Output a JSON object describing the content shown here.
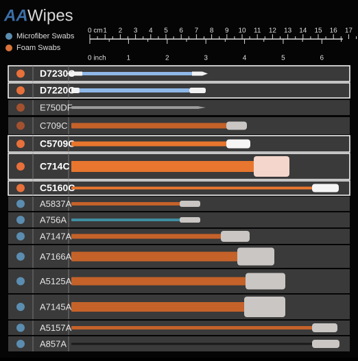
{
  "header": {
    "logo_mark": "AA",
    "logo_text": "Wipes"
  },
  "legend": [
    {
      "label": "Microfiber Swabs",
      "color": "#5b8db0"
    },
    {
      "label": "Foam Swabs",
      "color": "#d9733a"
    }
  ],
  "ruler": {
    "cm_label": "0 cm",
    "cm_ticks": [
      "1",
      "2",
      "3",
      "4",
      "5",
      "6",
      "7",
      "8",
      "9",
      "10",
      "11",
      "12",
      "13",
      "14",
      "15",
      "16",
      "17"
    ],
    "inch_label": "0 inch",
    "inch_ticks": [
      "1",
      "2",
      "3",
      "4",
      "5",
      "6"
    ]
  },
  "table": {
    "rows": [
      {
        "label": "D7230C",
        "color": "#e8703a"
      },
      {
        "label": "D7220C",
        "color": "#e8703a"
      },
      {
        "label": "E750DF",
        "color": "#a3512f"
      },
      {
        "label": "C709C",
        "color": "#a3512f"
      },
      {
        "label": "C5709C",
        "color": "#e8703a"
      },
      {
        "label": "C714C",
        "color": "#e8703a"
      },
      {
        "label": "C5160C",
        "color": "#e8703a"
      },
      {
        "label": "A5837A",
        "color": "#5b8db0"
      },
      {
        "label": "A756A",
        "color": "#5b8db0"
      },
      {
        "label": "A7147A",
        "color": "#5b8db0"
      },
      {
        "label": "A7166A",
        "color": "#5b8db0"
      },
      {
        "label": "A5125A",
        "color": "#5b8db0"
      },
      {
        "label": "A7145A",
        "color": "#5b8db0"
      },
      {
        "label": "A5157A",
        "color": "#5b8db0"
      },
      {
        "label": "A857A",
        "color": "#5b8db0"
      }
    ]
  }
}
